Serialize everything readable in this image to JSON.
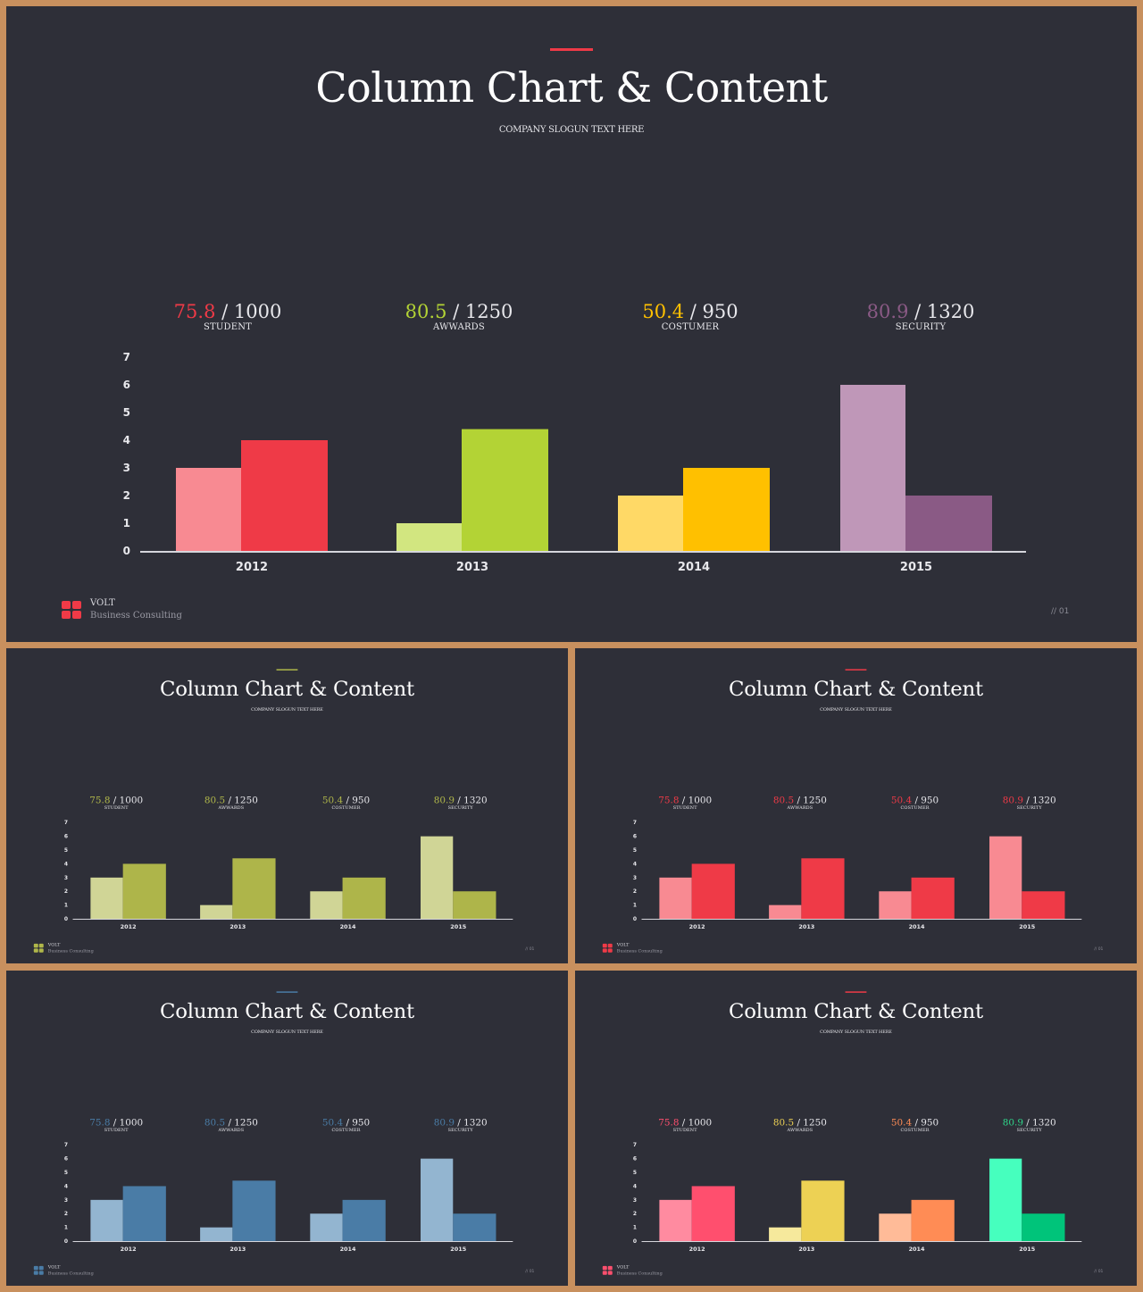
{
  "title": "Column Chart & Content",
  "slogan": "COMPANY SLOGUN TEXT HERE",
  "brand": {
    "name": "VOLT",
    "sub": "Business  Consulting"
  },
  "page_number": "// 01",
  "stats": [
    {
      "value": "75.8",
      "total": " / 1000",
      "label": "STUDENT"
    },
    {
      "value": "80.5",
      "total": " / 1250",
      "label": "AWWARDS"
    },
    {
      "value": "50.4",
      "total": " / 950",
      "label": "COSTUMER"
    },
    {
      "value": "80.9",
      "total": " / 1320",
      "label": "SECURITY"
    }
  ],
  "chart_data": {
    "type": "bar",
    "categories": [
      "2012",
      "2013",
      "2014",
      "2015"
    ],
    "series": [
      {
        "values": [
          3,
          1,
          2,
          6
        ]
      },
      {
        "values": [
          4,
          4.4,
          3,
          2
        ]
      }
    ],
    "yticks": [
      0,
      1,
      2,
      3,
      4,
      5,
      6,
      7
    ],
    "ylim": [
      0,
      7
    ],
    "grid": false,
    "legend": "none"
  },
  "themes": [
    {
      "id": "main",
      "accent": "#ef3a47",
      "logo_color": "#ef3a47",
      "stat_colors": [
        "#ef3a47",
        "#b3d335",
        "#ffc000",
        "#8a5a85"
      ],
      "bar_colors": [
        [
          "#f88a92",
          "#ef3a47"
        ],
        [
          "#d2e680",
          "#b3d335"
        ],
        [
          "#ffd966",
          "#ffc000"
        ],
        [
          "#bf97b8",
          "#8a5a85"
        ]
      ]
    },
    {
      "id": "olive",
      "accent": "#b0b74a",
      "logo_color": "#b0b74a",
      "stat_colors": [
        "#b0b74a",
        "#b0b74a",
        "#b0b74a",
        "#b0b74a"
      ],
      "bar_colors": [
        [
          "#d0d596",
          "#aeb54a"
        ],
        [
          "#d0d596",
          "#aeb54a"
        ],
        [
          "#d0d596",
          "#aeb54a"
        ],
        [
          "#d0d596",
          "#aeb54a"
        ]
      ]
    },
    {
      "id": "red",
      "accent": "#ef3a47",
      "logo_color": "#ef3a47",
      "stat_colors": [
        "#ef3a47",
        "#ef3a47",
        "#ef3a47",
        "#ef3a47"
      ],
      "bar_colors": [
        [
          "#f88a92",
          "#ef3a47"
        ],
        [
          "#f88a92",
          "#ef3a47"
        ],
        [
          "#f88a92",
          "#ef3a47"
        ],
        [
          "#f88a92",
          "#ef3a47"
        ]
      ]
    },
    {
      "id": "blue",
      "accent": "#4a7ca6",
      "logo_color": "#4a7ca6",
      "stat_colors": [
        "#4a7ca6",
        "#4a7ca6",
        "#4a7ca6",
        "#4a7ca6"
      ],
      "bar_colors": [
        [
          "#93b5d0",
          "#4a7ca6"
        ],
        [
          "#93b5d0",
          "#4a7ca6"
        ],
        [
          "#93b5d0",
          "#4a7ca6"
        ],
        [
          "#93b5d0",
          "#4a7ca6"
        ]
      ]
    },
    {
      "id": "multi",
      "accent": "#ef3a47",
      "logo_color": "#ff4f6e",
      "stat_colors": [
        "#ff4f6e",
        "#edd154",
        "#ff8c55",
        "#2ed68a"
      ],
      "bar_colors": [
        [
          "#ff8ba0",
          "#ff4f6e"
        ],
        [
          "#f6e99c",
          "#edd154"
        ],
        [
          "#ffbb98",
          "#ff8c55"
        ],
        [
          "#46ffbe",
          "#00c47a"
        ]
      ]
    }
  ]
}
